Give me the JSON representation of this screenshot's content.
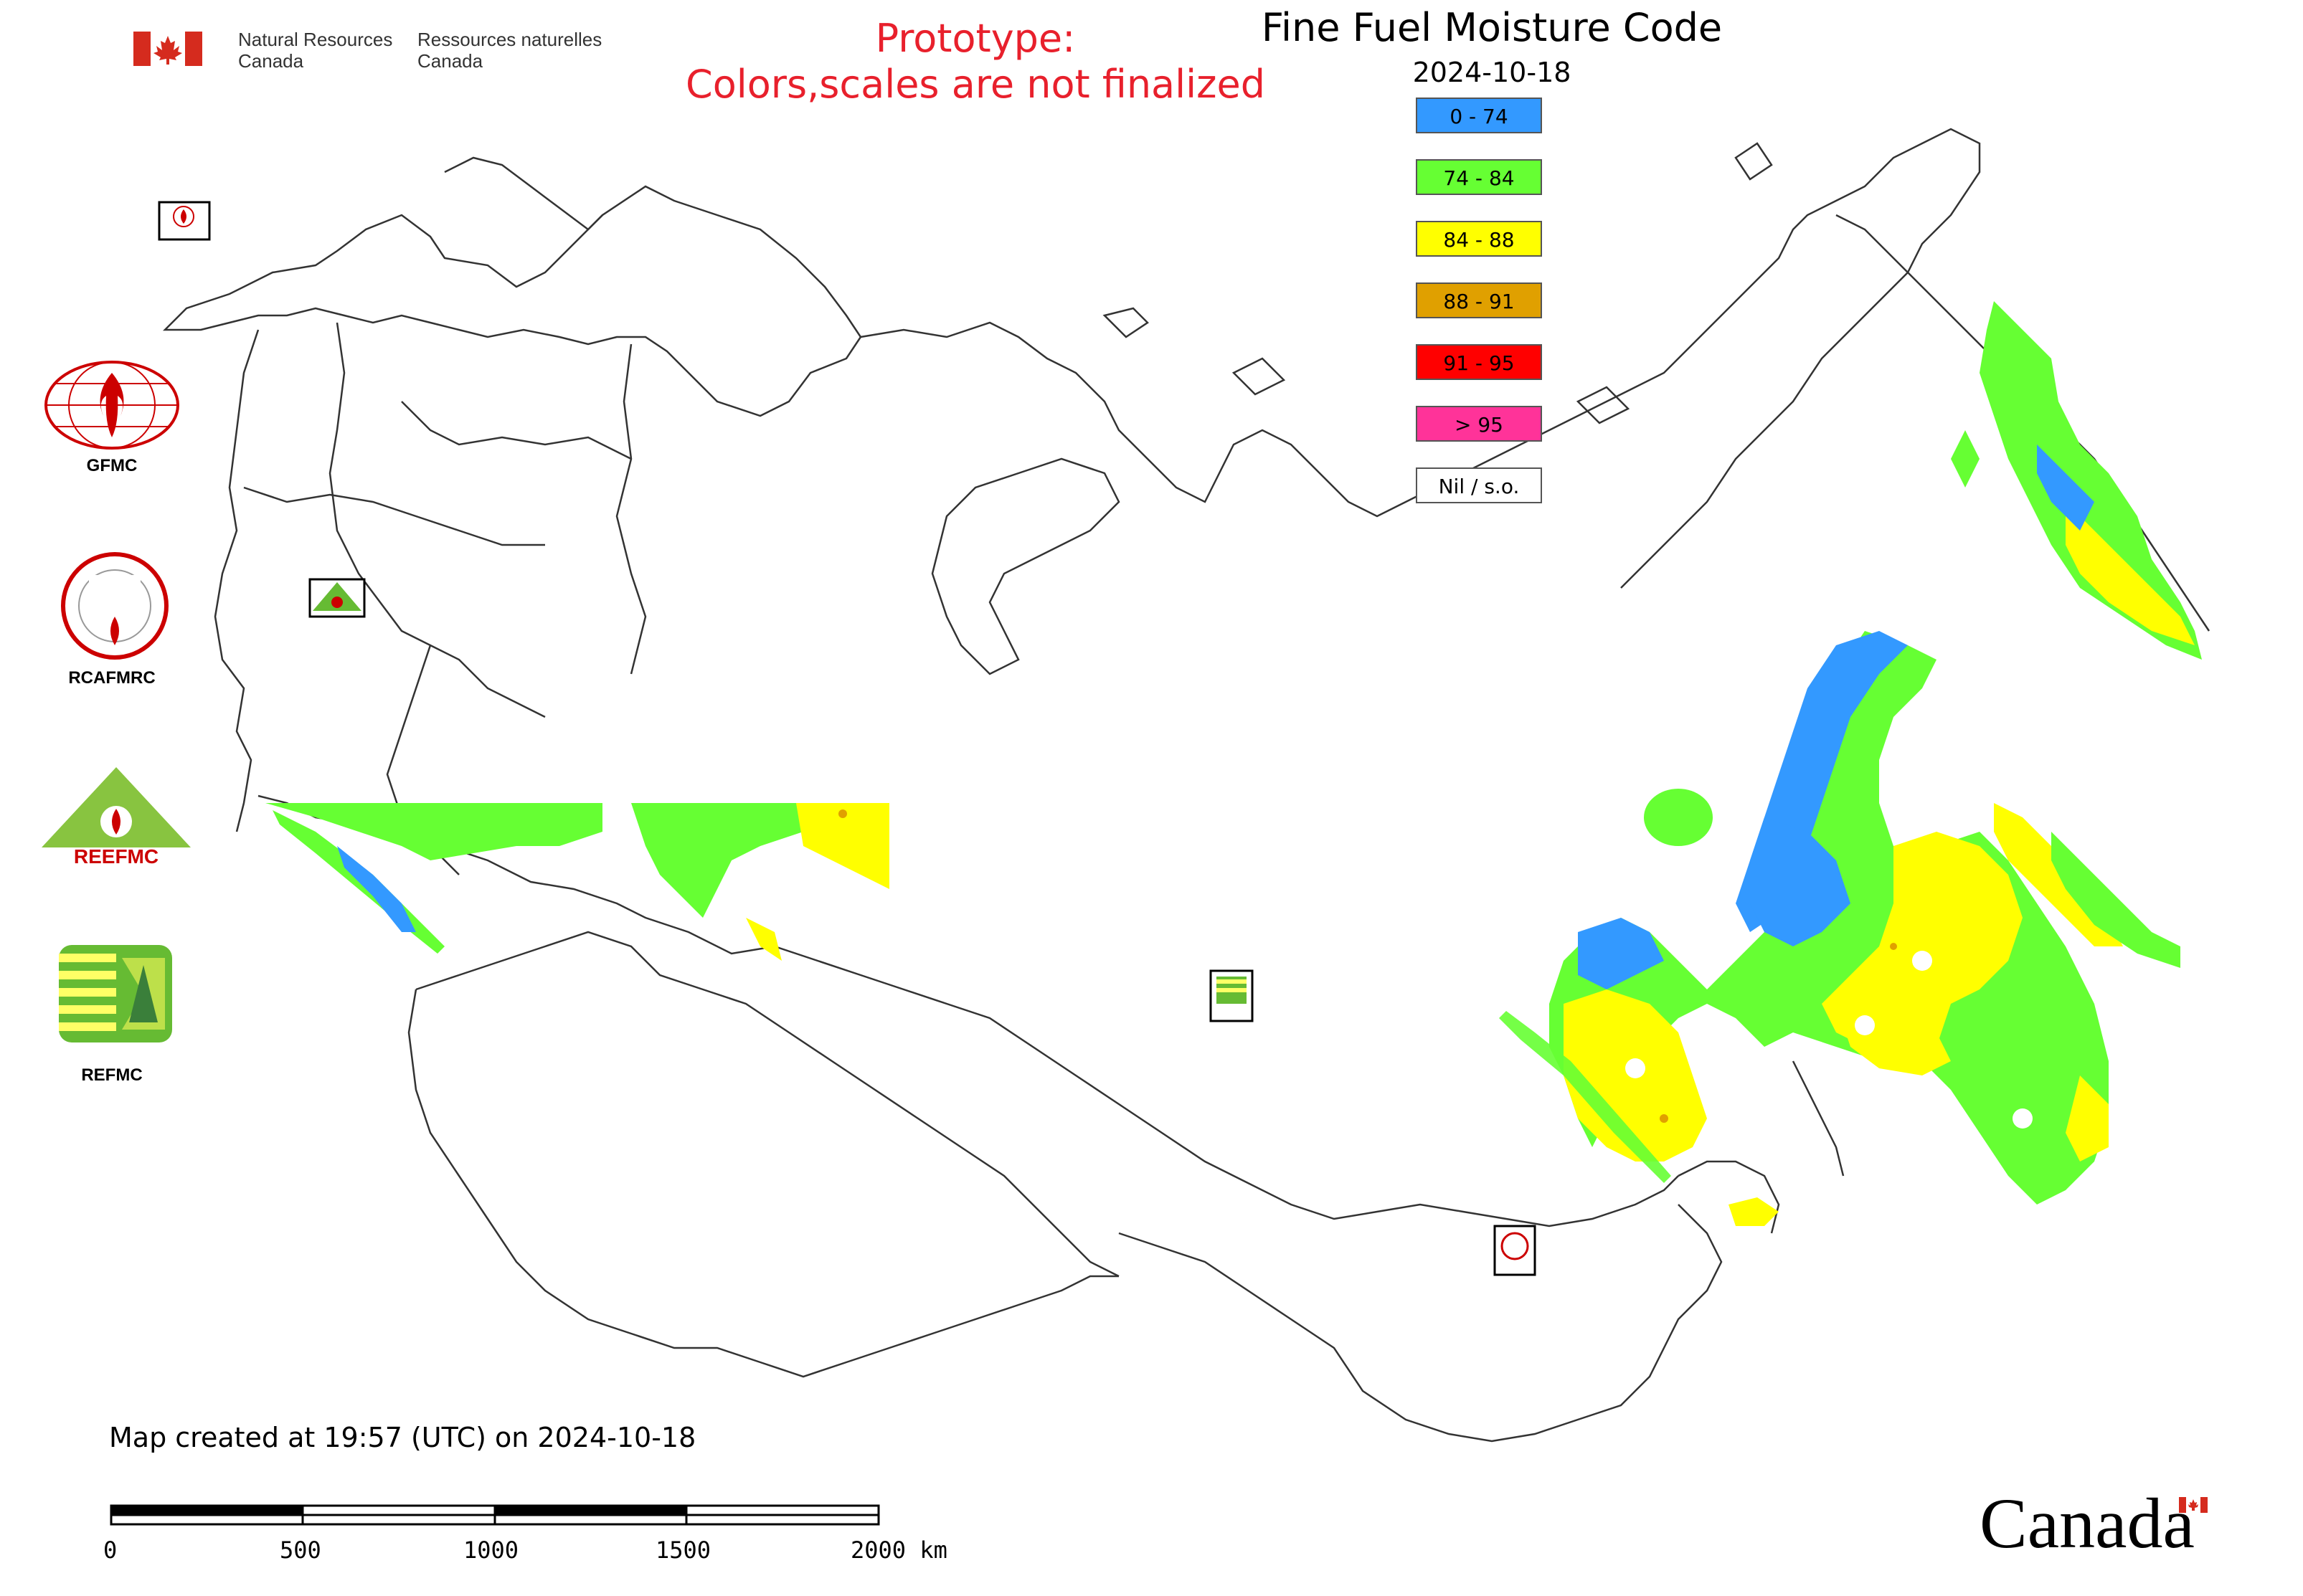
{
  "header": {
    "gov_en_line1": "Natural Resources",
    "gov_en_line2": "Canada",
    "gov_fr_line1": "Ressources naturelles",
    "gov_fr_line2": "Canada",
    "flag_icon": "canada-flag-icon"
  },
  "prototype": {
    "line1": "Prototype:",
    "line2": "Colors,scales are not finalized"
  },
  "title": "Fine Fuel Moisture Code",
  "date": "2024-10-18",
  "legend": [
    {
      "label": "0 - 74",
      "color": "#3399ff"
    },
    {
      "label": "74 - 84",
      "color": "#66ff33"
    },
    {
      "label": "84 - 88",
      "color": "#ffff00"
    },
    {
      "label": "88 - 91",
      "color": "#e0a000"
    },
    {
      "label": "91 - 95",
      "color": "#ff0000"
    },
    {
      "label": "> 95",
      "color": "#ff3399"
    },
    {
      "label": "Nil / s.o.",
      "color": "#ffffff"
    }
  ],
  "logos": {
    "gfmc": "GFMC",
    "rcafmrc": "RCAFMRC",
    "reefmc_text": "REEFMC",
    "refmc": "REFMC"
  },
  "created": "Map created at 19:57 (UTC) on 2024-10-18",
  "scale": {
    "ticks": [
      "0",
      "500",
      "1000",
      "1500",
      "2000 km"
    ]
  },
  "wordmark": "Canada"
}
